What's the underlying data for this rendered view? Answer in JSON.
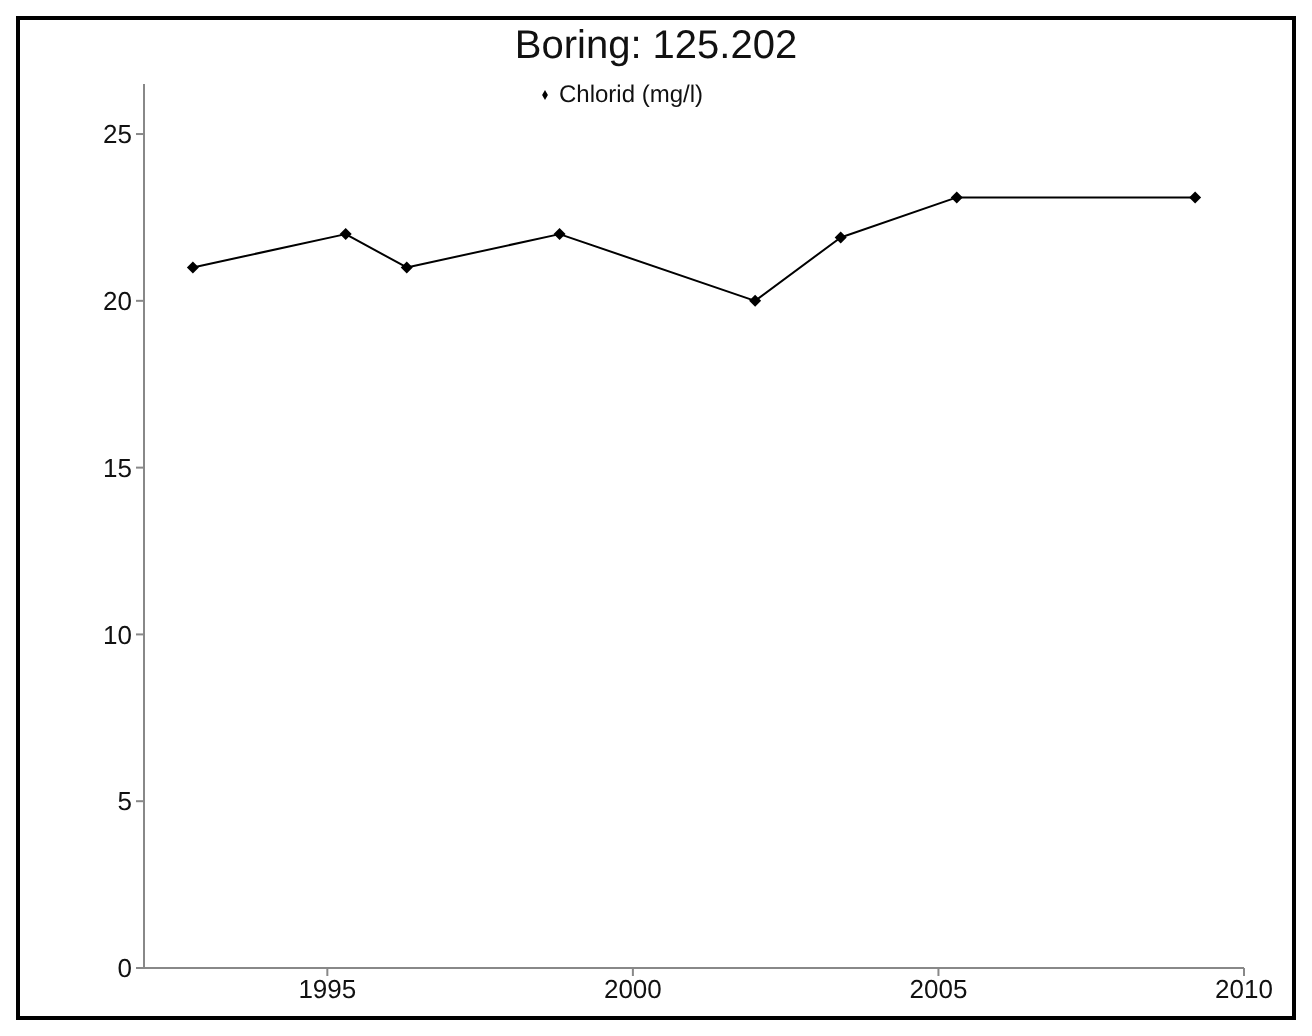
{
  "chart_data": {
    "type": "line",
    "title": "Boring: 125.202",
    "x": [
      1992.8,
      1995.3,
      1996.3,
      1998.8,
      2002.0,
      2003.4,
      2005.3,
      2009.2
    ],
    "series": [
      {
        "name": "Chlorid (mg/l)",
        "color": "#000000",
        "values": [
          21,
          22,
          21,
          22,
          20,
          21.9,
          23.1,
          23.1
        ]
      }
    ],
    "xlim": [
      1992,
      2010
    ],
    "xticks": [
      1995,
      2000,
      2005,
      2010
    ],
    "ylim": [
      0,
      26.5
    ],
    "yticks": [
      0,
      5,
      10,
      15,
      20,
      25
    ],
    "grid": false,
    "legend": "top",
    "marker": "diamond",
    "line_style": "solid"
  }
}
